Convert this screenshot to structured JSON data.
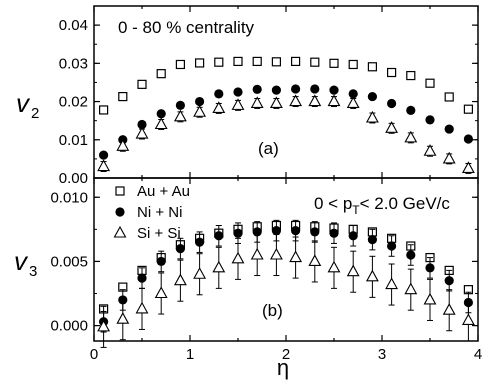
{
  "chart_data": [
    {
      "type": "scatter",
      "panel_label": "(a)",
      "annotation": "0 - 80 %  centrality",
      "ylabel": "v",
      "ylabel_sub": "2",
      "xlim": [
        0,
        4
      ],
      "ylim": [
        0,
        0.045
      ],
      "yticks": [
        "0.00",
        "0.01",
        "0.02",
        "0.03",
        "0.04"
      ],
      "x": [
        0.1,
        0.3,
        0.5,
        0.7,
        0.9,
        1.1,
        1.3,
        1.5,
        1.7,
        1.9,
        2.1,
        2.3,
        2.5,
        2.7,
        2.9,
        3.1,
        3.3,
        3.5,
        3.7,
        3.9
      ],
      "series": [
        {
          "name": "Au + Au",
          "marker": "square-open",
          "values": [
            0.0178,
            0.0213,
            0.0245,
            0.0273,
            0.0297,
            0.0301,
            0.0303,
            0.0305,
            0.0305,
            0.0304,
            0.0305,
            0.0303,
            0.03,
            0.0297,
            0.0291,
            0.0276,
            0.0268,
            0.0248,
            0.0212,
            0.018
          ],
          "errors": [
            0.0008,
            0.0008,
            0.0008,
            0.0008,
            0.0008,
            0.0008,
            0.0008,
            0.0008,
            0.0008,
            0.0008,
            0.0008,
            0.0008,
            0.0008,
            0.0008,
            0.0008,
            0.0008,
            0.0008,
            0.0008,
            0.0008,
            0.0008
          ]
        },
        {
          "name": "Ni + Ni",
          "marker": "circle-filled",
          "values": [
            0.006,
            0.01,
            0.014,
            0.0168,
            0.019,
            0.02,
            0.022,
            0.0225,
            0.0232,
            0.023,
            0.0233,
            0.0233,
            0.023,
            0.022,
            0.0213,
            0.0195,
            0.0177,
            0.0152,
            0.0128,
            0.0102
          ],
          "errors": [
            0.0005,
            0.0005,
            0.0005,
            0.0005,
            0.0005,
            0.0005,
            0.0005,
            0.0005,
            0.0005,
            0.0005,
            0.0005,
            0.0005,
            0.0005,
            0.0005,
            0.0005,
            0.0005,
            0.0005,
            0.0005,
            0.0005,
            0.0005
          ]
        },
        {
          "name": "Si + Si",
          "marker": "triangle-open",
          "values": [
            0.003,
            0.0083,
            0.0115,
            0.014,
            0.016,
            0.0172,
            0.0182,
            0.019,
            0.0195,
            0.0195,
            0.02,
            0.02,
            0.02,
            0.0195,
            0.0157,
            0.013,
            0.0105,
            0.007,
            0.005,
            0.0025
          ],
          "errors": [
            0.0013,
            0.0013,
            0.0013,
            0.0013,
            0.0013,
            0.0013,
            0.0013,
            0.0013,
            0.0013,
            0.0013,
            0.0013,
            0.0013,
            0.0013,
            0.0013,
            0.0013,
            0.0013,
            0.0013,
            0.0013,
            0.0013,
            0.0013
          ]
        }
      ]
    },
    {
      "type": "scatter",
      "panel_label": "(b)",
      "annotation_prefix": "0 < p",
      "annotation_sub": "T",
      "annotation_suffix": "< 2.0 GeV/c",
      "ylabel": "v",
      "ylabel_sub": "3",
      "xlabel": "η",
      "xlim": [
        0,
        4
      ],
      "ylim": [
        -0.0012,
        0.0115
      ],
      "yticks": [
        "0.000",
        "0.005",
        "0.010"
      ],
      "xticks": [
        "0",
        "1",
        "2",
        "3",
        "4"
      ],
      "legend_position": "top-left",
      "x": [
        0.1,
        0.3,
        0.5,
        0.7,
        0.9,
        1.1,
        1.3,
        1.5,
        1.7,
        1.9,
        2.1,
        2.3,
        2.5,
        2.7,
        2.9,
        3.1,
        3.3,
        3.5,
        3.7,
        3.9
      ],
      "series": [
        {
          "name": "Au + Au",
          "marker": "square-open",
          "values": [
            0.0013,
            0.003,
            0.0043,
            0.0053,
            0.0063,
            0.0068,
            0.0072,
            0.0075,
            0.0077,
            0.0078,
            0.0078,
            0.0077,
            0.0076,
            0.0075,
            0.0073,
            0.0068,
            0.0062,
            0.0053,
            0.0043,
            0.0028
          ],
          "errors": [
            0.0003,
            0.0003,
            0.0003,
            0.0003,
            0.0003,
            0.0003,
            0.0003,
            0.0003,
            0.0003,
            0.0003,
            0.0003,
            0.0003,
            0.0003,
            0.0003,
            0.0003,
            0.0003,
            0.0003,
            0.0003,
            0.0003,
            0.0003
          ]
        },
        {
          "name": "Ni + Ni",
          "marker": "circle-filled",
          "values": [
            0.0003,
            0.002,
            0.0037,
            0.005,
            0.006,
            0.0065,
            0.007,
            0.0072,
            0.0073,
            0.0074,
            0.0074,
            0.0073,
            0.0072,
            0.007,
            0.0067,
            0.0062,
            0.0055,
            0.0045,
            0.0035,
            0.0018
          ],
          "errors": [
            0.0008,
            0.0008,
            0.0008,
            0.0008,
            0.0008,
            0.0008,
            0.0008,
            0.0008,
            0.0008,
            0.0008,
            0.0008,
            0.0008,
            0.0008,
            0.0008,
            0.0008,
            0.0008,
            0.0008,
            0.0008,
            0.0008,
            0.0008
          ]
        },
        {
          "name": "Si + Si",
          "marker": "triangle-open",
          "values": [
            -0.0001,
            0.0005,
            0.0013,
            0.0025,
            0.0035,
            0.004,
            0.0045,
            0.0052,
            0.0055,
            0.0055,
            0.0053,
            0.005,
            0.0045,
            0.0042,
            0.0038,
            0.0032,
            0.0028,
            0.002,
            0.0012,
            0.0004
          ],
          "errors": [
            0.0016,
            0.0016,
            0.0016,
            0.0016,
            0.0016,
            0.0016,
            0.0016,
            0.0016,
            0.0016,
            0.0016,
            0.0016,
            0.0016,
            0.0016,
            0.0016,
            0.0016,
            0.0016,
            0.0016,
            0.0016,
            0.0016,
            0.0016
          ]
        }
      ]
    }
  ]
}
